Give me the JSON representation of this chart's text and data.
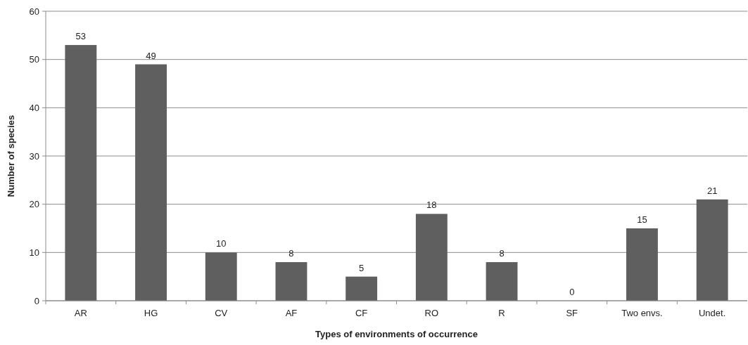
{
  "chart_data": {
    "type": "bar",
    "xlabel": "Types of environments of occurrence",
    "ylabel": "Number of species",
    "categories": [
      "AR",
      "HG",
      "CV",
      "AF",
      "CF",
      "RO",
      "R",
      "SF",
      "Two envs.",
      "Undet."
    ],
    "values": [
      53,
      49,
      10,
      8,
      5,
      18,
      8,
      0,
      15,
      21
    ],
    "color": "#5f5f5f",
    "ylim": [
      0,
      60
    ],
    "yticks": [
      0,
      10,
      20,
      30,
      40,
      50,
      60
    ],
    "grid": "y",
    "data_labels": true
  }
}
